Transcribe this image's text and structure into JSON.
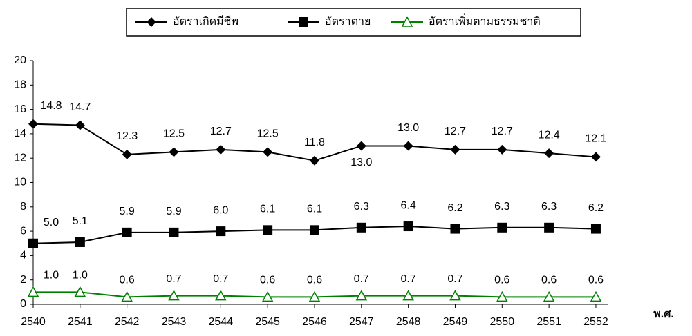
{
  "chart_data": {
    "type": "line",
    "x_label": "พ.ศ.",
    "categories": [
      "2540",
      "2541",
      "2542",
      "2543",
      "2544",
      "2545",
      "2546",
      "2547",
      "2548",
      "2549",
      "2550",
      "2551",
      "2552"
    ],
    "series": [
      {
        "name": "อัตราเกิดมีชีพ",
        "color": "#000000",
        "marker": "diamond",
        "values": [
          14.8,
          14.7,
          12.3,
          12.5,
          12.7,
          12.5,
          11.8,
          13.0,
          13.0,
          12.7,
          12.7,
          12.4,
          12.1
        ],
        "value_labels": [
          "14.8",
          "14.7",
          "12.3",
          "12.5",
          "12.7",
          "12.5",
          "11.8",
          "13.0",
          "13.0",
          "12.7",
          "12.7",
          "12.4",
          "12.1"
        ]
      },
      {
        "name": "อัตราตาย",
        "color": "#000000",
        "marker": "square",
        "values": [
          5.0,
          5.1,
          5.9,
          5.9,
          6.0,
          6.1,
          6.1,
          6.3,
          6.4,
          6.2,
          6.3,
          6.3,
          6.2
        ],
        "value_labels": [
          "5.0",
          "5.1",
          "5.9",
          "5.9",
          "6.0",
          "6.1",
          "6.1",
          "6.3",
          "6.4",
          "6.2",
          "6.3",
          "6.3",
          "6.2"
        ]
      },
      {
        "name": "อัตราเพิ่มตามธรรมชาติ",
        "color": "#008000",
        "marker": "triangle",
        "values": [
          1.0,
          1.0,
          0.6,
          0.7,
          0.7,
          0.6,
          0.6,
          0.7,
          0.7,
          0.7,
          0.6,
          0.6,
          0.6
        ],
        "value_labels": [
          "1.0",
          "1.0",
          "0.6",
          "0.7",
          "0.7",
          "0.6",
          "0.6",
          "0.7",
          "0.7",
          "0.7",
          "0.6",
          "0.6",
          "0.6"
        ]
      }
    ],
    "ylim": [
      0,
      20
    ],
    "yticks": [
      0,
      2,
      4,
      6,
      8,
      10,
      12,
      14,
      16,
      18,
      20
    ],
    "legend": "top"
  }
}
